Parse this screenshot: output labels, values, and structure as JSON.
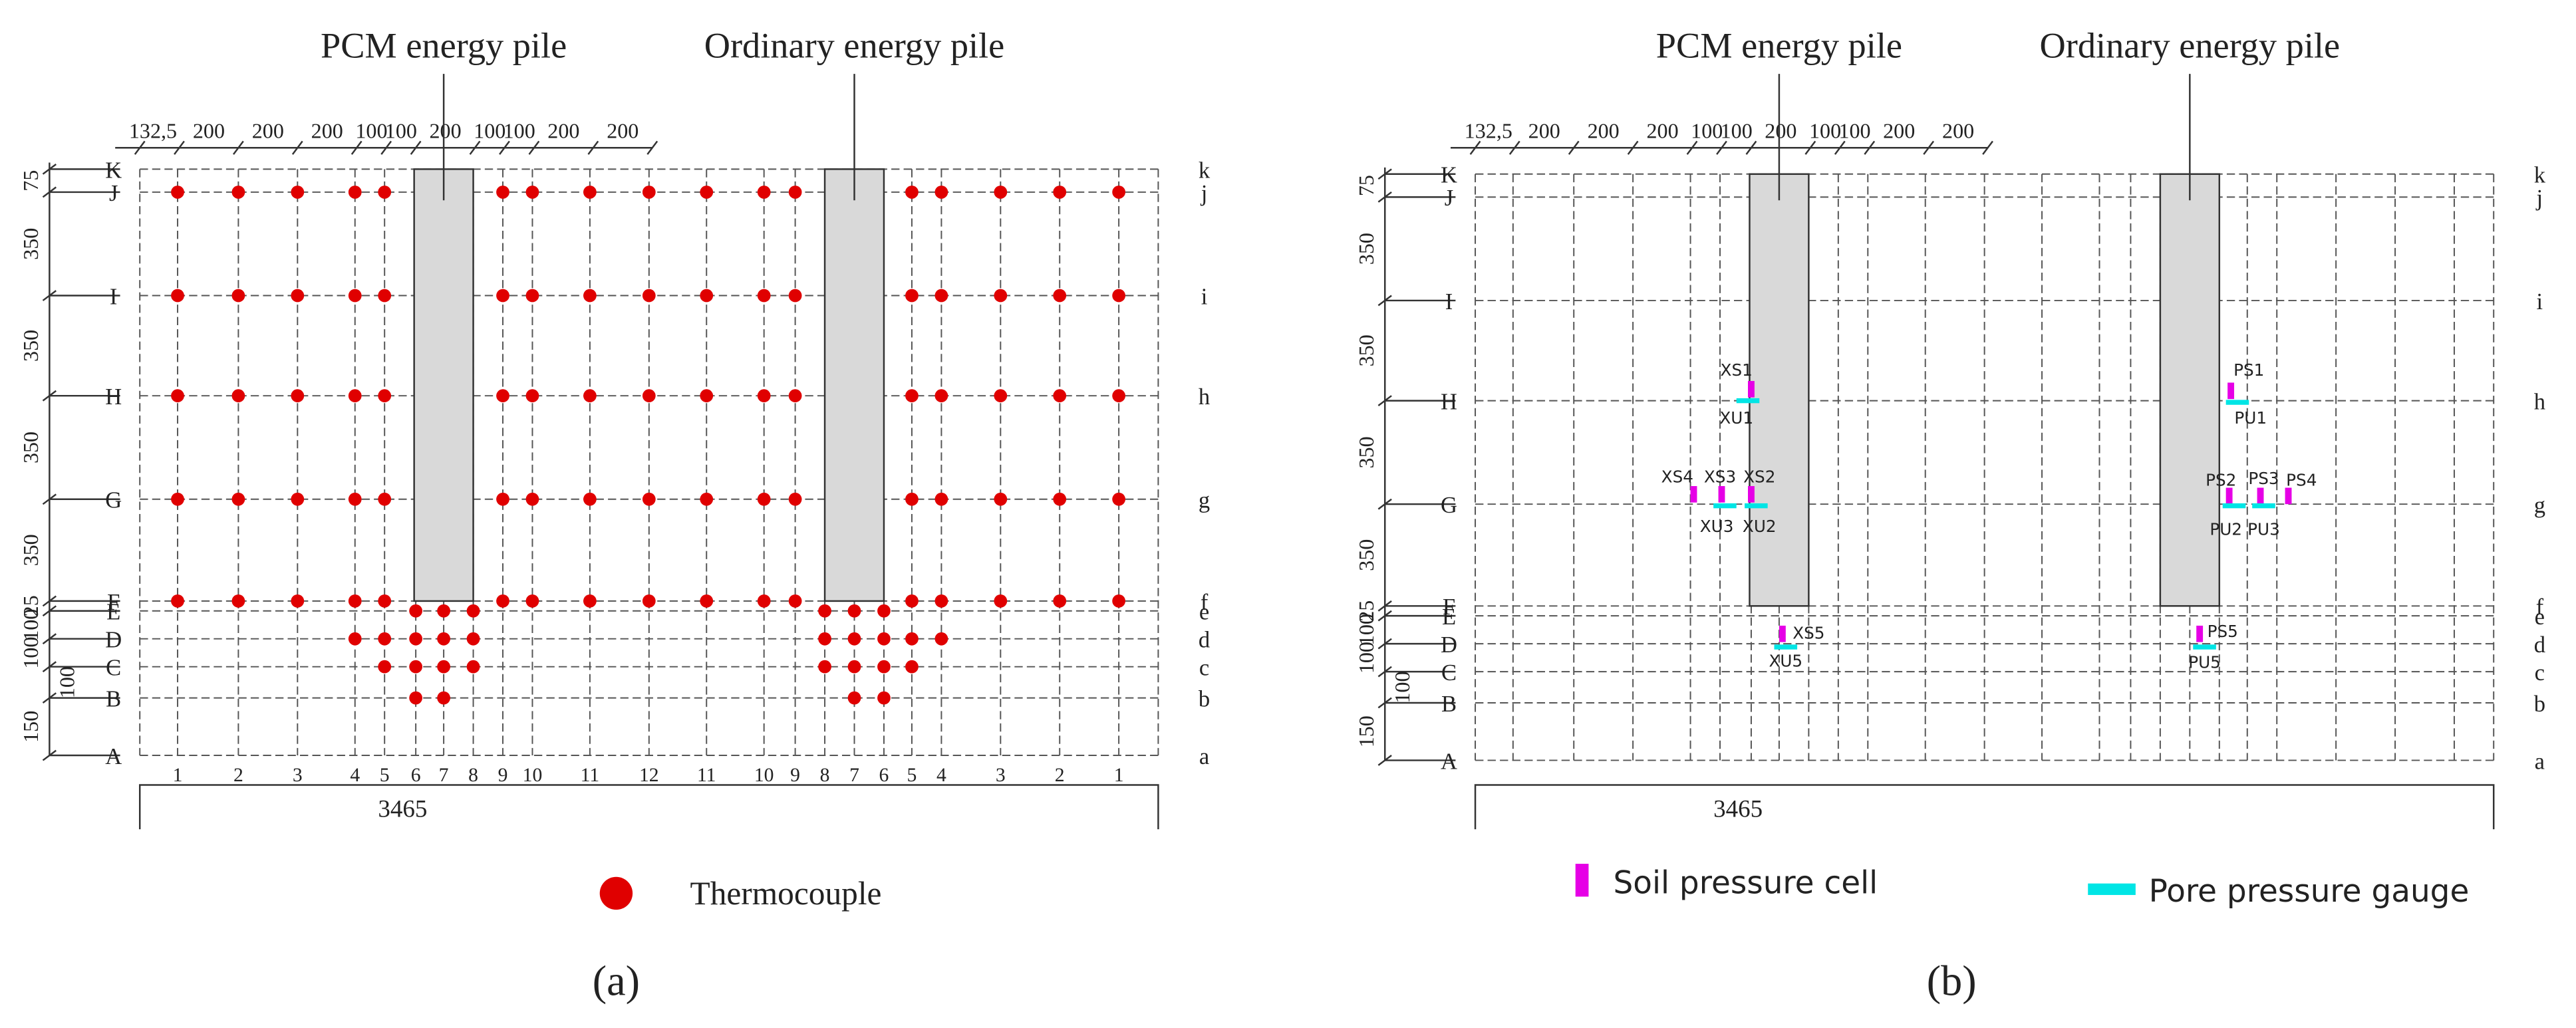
{
  "panel_a": {
    "pile_labels": [
      "PCM energy pile",
      "Ordinary energy pile"
    ],
    "top_dims": [
      "132,5",
      "200",
      "200",
      "200",
      "100",
      "100",
      "200",
      "100",
      "100",
      "200",
      "200"
    ],
    "left_dims": [
      "75",
      "350",
      "350",
      "350",
      "350",
      "25",
      "100",
      "100",
      "100",
      "150"
    ],
    "rows_left": [
      "K",
      "J",
      "I",
      "H",
      "G",
      "F",
      "E",
      "D",
      "C",
      "B",
      "A"
    ],
    "rows_right": [
      "k",
      "j",
      "i",
      "h",
      "g",
      "f",
      "e",
      "d",
      "c",
      "b",
      "a"
    ],
    "columns": [
      "1",
      "2",
      "3",
      "4",
      "5",
      "6",
      "7",
      "8",
      "9",
      "10",
      "11",
      "12",
      "11",
      "10",
      "9",
      "8",
      "7",
      "6",
      "5",
      "4",
      "3",
      "2",
      "1"
    ],
    "total": "3465",
    "legend": [
      "Thermocouple"
    ],
    "caption": "(a)"
  },
  "panel_b": {
    "pile_labels": [
      "PCM energy pile",
      "Ordinary energy pile"
    ],
    "top_dims": [
      "132,5",
      "200",
      "200",
      "200",
      "100",
      "100",
      "200",
      "100",
      "100",
      "200",
      "200"
    ],
    "left_dims": [
      "75",
      "350",
      "350",
      "350",
      "350",
      "25",
      "100",
      "100",
      "100",
      "150"
    ],
    "rows_left": [
      "K",
      "J",
      "I",
      "H",
      "G",
      "F",
      "E",
      "D",
      "C",
      "B",
      "A"
    ],
    "rows_right": [
      "k",
      "j",
      "i",
      "h",
      "g",
      "f",
      "e",
      "d",
      "c",
      "b",
      "a"
    ],
    "total": "3465",
    "sensors": [
      "XS1",
      "XU1",
      "XS4",
      "XS3",
      "XS2",
      "XU3",
      "XU2",
      "XS5",
      "XU5",
      "PS1",
      "PU1",
      "PS2",
      "PS3",
      "PS4",
      "PU2",
      "PU3",
      "PS5",
      "PU5"
    ],
    "legend": [
      "Soil pressure cell",
      "Pore pressure gauge"
    ],
    "caption": "(b)"
  }
}
